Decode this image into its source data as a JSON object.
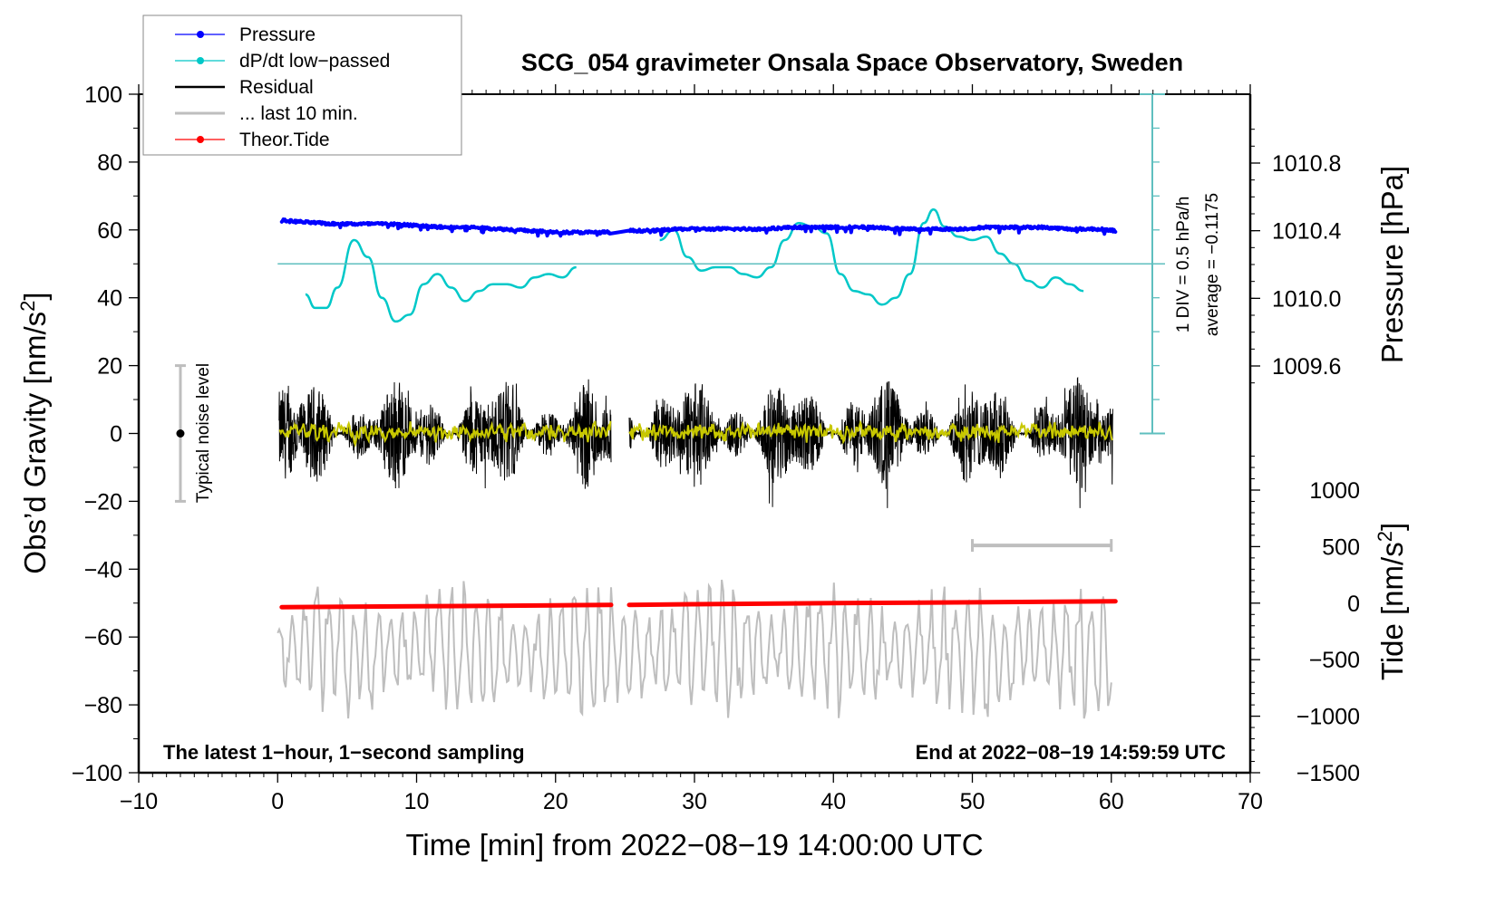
{
  "chart_data": {
    "type": "line",
    "title": "SCG_054 gravimeter Onsala Space Observatory, Sweden",
    "xlabel": "Time [min] from 2022−08−19 14:00:00 UTC",
    "ylabel_left": "Obs’d Gravity [nm/s²]",
    "ylabel_right_pressure": "Pressure [hPa]",
    "ylabel_right_tide": "Tide [nm/s²]",
    "xlim": [
      -10,
      70
    ],
    "ylim": [
      -100,
      100
    ],
    "x_ticks": [
      -10,
      0,
      10,
      20,
      30,
      40,
      50,
      60,
      70
    ],
    "x_tick_labels": [
      "−10",
      "0",
      "10",
      "20",
      "30",
      "40",
      "50",
      "60",
      "70"
    ],
    "y_ticks": [
      100,
      80,
      60,
      40,
      20,
      0,
      -20,
      -40,
      -60,
      -80,
      -100
    ],
    "y_tick_labels": [
      "100",
      "80",
      "60",
      "40",
      "20",
      "0",
      "−20",
      "−40",
      "−60",
      "−80",
      "−100"
    ],
    "pressure_axis": {
      "ticks": [
        1010.8,
        1010.4,
        1010.0,
        1009.6
      ],
      "tick_labels": [
        "1010.8",
        "1010.4",
        "1010.0",
        "1009.6"
      ]
    },
    "tide_axis": {
      "ticks": [
        1000,
        500,
        0,
        -500,
        -1000,
        -1500
      ],
      "tick_labels": [
        "1000",
        "500",
        "0",
        "−500",
        "−1000",
        "−1500"
      ]
    },
    "legend": {
      "position": "top-left",
      "entries": [
        {
          "label": "Pressure",
          "color": "#0000ff",
          "marker": true
        },
        {
          "label": "dP/dt low−passed",
          "color": "#00c8c8",
          "marker": true
        },
        {
          "label": "Residual",
          "color": "#000000",
          "marker": false
        },
        {
          "label": "... last 10 min.",
          "color": "#bebebe",
          "marker": false
        },
        {
          "label": "Theor.Tide",
          "color": "#ff0000",
          "marker": true
        }
      ]
    },
    "annotations": {
      "bottom_left": "The latest 1−hour, 1−second sampling",
      "bottom_right": "End at 2022−08−19 14:59:59 UTC",
      "noise_label": "Typical noise level",
      "div_label": "1 DIV = 0.5 hPa/h",
      "average_label": "average = −0.1175"
    },
    "noise_bar": {
      "x": -7,
      "center": 0,
      "low": -20,
      "high": 20
    },
    "last10_bar": {
      "x_start": 50,
      "x_end": 60,
      "y": -33
    },
    "gap": {
      "start": 24.0,
      "end": 25.3
    },
    "series": [
      {
        "name": "Pressure",
        "axis": "pressure_hPa",
        "color": "#0000ff",
        "x": [
          0.3,
          2,
          4,
          6,
          8,
          10,
          12,
          14,
          16,
          18,
          20,
          22,
          24,
          25.3,
          27,
          29,
          31,
          33,
          35,
          37,
          39,
          41,
          43,
          45,
          47,
          49,
          51,
          53,
          55,
          57,
          59,
          60.3
        ],
        "values": [
          1010.46,
          1010.45,
          1010.44,
          1010.44,
          1010.44,
          1010.43,
          1010.42,
          1010.42,
          1010.41,
          1010.4,
          1010.39,
          1010.39,
          1010.39,
          1010.4,
          1010.4,
          1010.41,
          1010.41,
          1010.41,
          1010.41,
          1010.42,
          1010.42,
          1010.42,
          1010.42,
          1010.41,
          1010.41,
          1010.41,
          1010.42,
          1010.42,
          1010.42,
          1010.41,
          1010.41,
          1010.4
        ]
      },
      {
        "name": "dP/dt low-passed",
        "axis": "left_gravity_units",
        "color": "#00c8c8",
        "x": [
          2,
          2.7,
          3.5,
          4.3,
          5.5,
          6.5,
          7.5,
          8.5,
          9.5,
          10.5,
          11.5,
          12.5,
          13.5,
          14.5,
          15.5,
          16.5,
          17.5,
          18.5,
          19.5,
          20.5,
          21.5,
          27.5,
          28.5,
          29.5,
          30.5,
          31.5,
          32.5,
          33.5,
          34.5,
          35.5,
          36.5,
          37.5,
          38.5,
          39.5,
          40.5,
          41.5,
          42.5,
          43.5,
          44.5,
          45.5,
          46.5,
          47.2,
          48.0,
          49.0,
          50.0,
          51.0,
          52.0,
          53.0,
          54.0,
          55.0,
          56.0,
          57.0,
          58.0
        ],
        "values": [
          41,
          37,
          37,
          43,
          57,
          52,
          40,
          33,
          35,
          44,
          47,
          43,
          39,
          42,
          44,
          44,
          43,
          46,
          47,
          46,
          49,
          57,
          60,
          52,
          48,
          49,
          49,
          47,
          46,
          49,
          57,
          62,
          61,
          59,
          47,
          42,
          41,
          38,
          40,
          47,
          62,
          66,
          61,
          58,
          57,
          58,
          53,
          50,
          45,
          43,
          46,
          44,
          42
        ]
      },
      {
        "name": "Residual",
        "axis": "left_gravity_units",
        "color": "#000000",
        "x_range": [
          0,
          60
        ],
        "amplitude_envelope": [
          -20,
          25
        ],
        "description": "noise around 0, 1-second sampling"
      },
      {
        "name": "Residual low-passed",
        "axis": "left_gravity_units",
        "color": "#c8c800",
        "x_range": [
          0,
          60
        ],
        "values_around": 0
      },
      {
        "name": "Theor.Tide",
        "axis": "tide_nm_s2",
        "color": "#ff0000",
        "x": [
          0.3,
          10,
          20,
          24,
          25.3,
          30,
          40,
          50,
          60.3
        ],
        "values": [
          -35,
          -28,
          -19,
          -15,
          -15,
          -10,
          0,
          7,
          16
        ]
      },
      {
        "name": "... last 10 min.",
        "axis": "left_gravity_units",
        "color": "#bebebe",
        "x_range": [
          0,
          60
        ],
        "center": -64,
        "amplitude": 18,
        "description": "last 10 min residual replotted at 6x time scale"
      }
    ]
  }
}
